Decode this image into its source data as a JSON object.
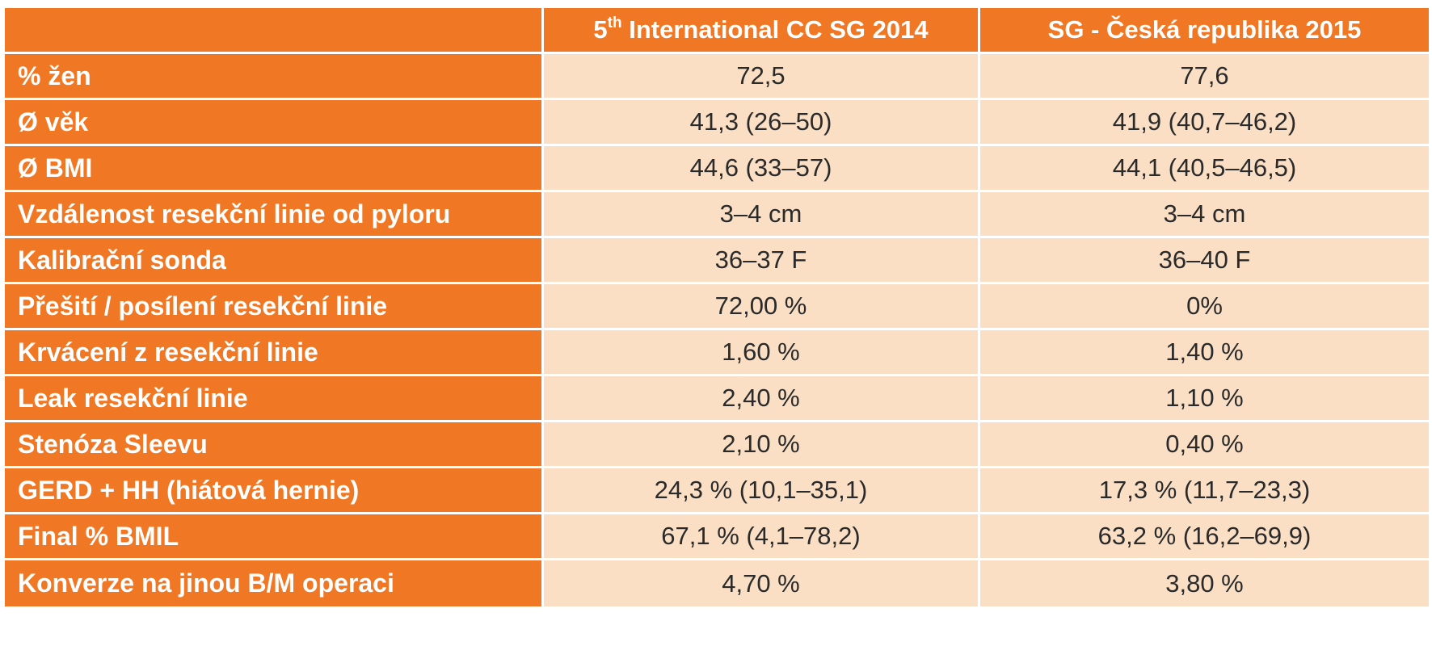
{
  "table": {
    "header": {
      "col_a_base": "5",
      "col_a_sup": "th",
      "col_a_rest": " International CC SG 2014",
      "col_b": "SG - Česká republika 2015"
    },
    "rows": [
      {
        "label": "% žen",
        "a": "72,5",
        "b": "77,6"
      },
      {
        "label": "Ø věk",
        "a": "41,3 (26–50)",
        "b": "41,9 (40,7–46,2)"
      },
      {
        "label": "Ø BMI",
        "a": "44,6 (33–57)",
        "b": "44,1 (40,5–46,5)"
      },
      {
        "label": "Vzdálenost resekční linie od pyloru",
        "a": "3–4 cm",
        "b": "3–4 cm"
      },
      {
        "label": "Kalibrační sonda",
        "a": "36–37 F",
        "b": "36–40 F"
      },
      {
        "label": "Přešití / posílení resekční linie",
        "a": "72,00 %",
        "b": "0%"
      },
      {
        "label": "Krvácení z resekční linie",
        "a": "1,60 %",
        "b": "1,40 %"
      },
      {
        "label": "Leak resekční linie",
        "a": "2,40 %",
        "b": "1,10 %"
      },
      {
        "label": "Stenóza Sleevu",
        "a": "2,10 %",
        "b": "0,40 %"
      },
      {
        "label": "GERD + HH (hiátová hernie)",
        "a": "24,3 % (10,1–35,1)",
        "b": "17,3 % (11,7–23,3)"
      },
      {
        "label": "Final % BMIL",
        "a": "67,1 % (4,1–78,2)",
        "b": "63,2 % (16,2–69,9)"
      },
      {
        "label": "Konverze na jinou B/M operaci",
        "a": "4,70 %",
        "b": "3,80 %"
      }
    ]
  },
  "colors": {
    "header_bg": "#f07724",
    "cell_bg": "#fadfc5",
    "grid": "#ffffff"
  }
}
